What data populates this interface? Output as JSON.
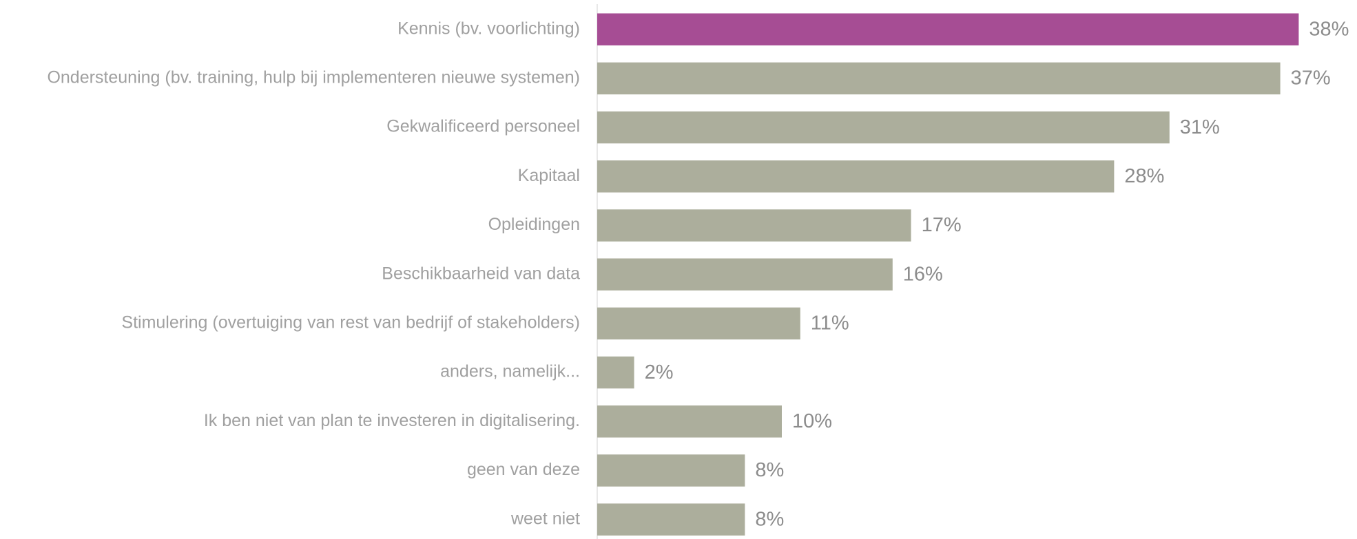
{
  "chart_data": {
    "type": "bar",
    "orientation": "horizontal",
    "categories": [
      "Kennis (bv. voorlichting)",
      "Ondersteuning (bv. training, hulp bij implementeren nieuwe systemen)",
      "Gekwalificeerd personeel",
      "Kapitaal",
      "Opleidingen",
      "Beschikbaarheid van data",
      "Stimulering (overtuiging van rest van bedrijf of stakeholders)",
      "anders, namelijk...",
      "Ik ben niet van plan te investeren in digitalisering.",
      "geen van deze",
      "weet niet"
    ],
    "values": [
      38,
      37,
      31,
      28,
      17,
      16,
      11,
      2,
      10,
      8,
      8
    ],
    "value_labels": [
      "38%",
      "37%",
      "31%",
      "28%",
      "17%",
      "16%",
      "11%",
      "2%",
      "10%",
      "8%",
      "8%"
    ],
    "colors": [
      "#a64d94",
      "#acae9c",
      "#acae9c",
      "#acae9c",
      "#acae9c",
      "#acae9c",
      "#acae9c",
      "#acae9c",
      "#acae9c",
      "#acae9c",
      "#acae9c"
    ]
  }
}
